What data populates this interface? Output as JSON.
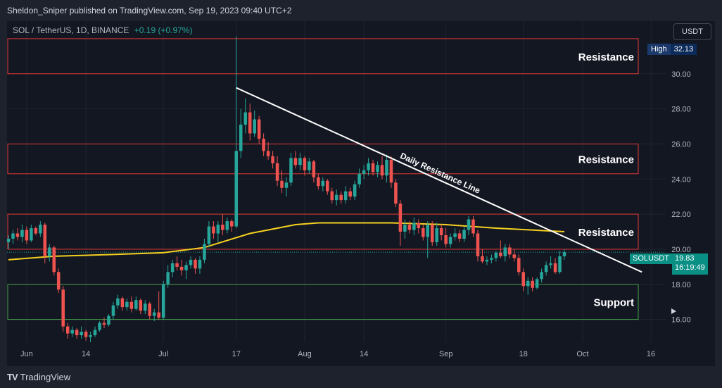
{
  "top_bar": {
    "publisher_text": "Sheldon_Sniper published on TradingView.com, Sep 19, 2023 09:40 UTC+2"
  },
  "symbol_header": {
    "symbol": "SOL / TetherUS, 1D, BINANCE",
    "change": "+0.19 (+0.97%)"
  },
  "currency_button": "USDT",
  "high_marker": {
    "label": "High",
    "value": "32.13"
  },
  "last_price_tag": {
    "symbol": "SOLUSDT",
    "price": "19.83",
    "countdown": "16:19:49"
  },
  "footer": {
    "brand": "TradingView",
    "brand_mark": "TV"
  },
  "colors": {
    "up": "#26a69a",
    "down": "#ef5350",
    "ma": "#f5d020",
    "resistance": "#e53935",
    "support": "#43a047",
    "trendline": "#ffffff",
    "background": "#131722"
  },
  "chart_data": {
    "type": "candlestick",
    "timeframe": "1D",
    "x_tick_labels": [
      "Jun",
      "14",
      "Jul",
      "17",
      "Aug",
      "14",
      "Sep",
      "18",
      "Oct",
      "16"
    ],
    "x_tick_dates": [
      "2023-06-01",
      "2023-06-14",
      "2023-07-01",
      "2023-07-17",
      "2023-08-01",
      "2023-08-14",
      "2023-09-01",
      "2023-09-18",
      "2023-10-01",
      "2023-10-16"
    ],
    "y_tick_labels": [
      "30.00",
      "28.00",
      "26.00",
      "24.00",
      "22.00",
      "20.00",
      "18.00",
      "16.00"
    ],
    "y_range": [
      14.7,
      33.0
    ],
    "candles": [
      {
        "date": "2023-05-28",
        "o": 20.4,
        "h": 20.8,
        "l": 20.0,
        "c": 20.6
      },
      {
        "date": "2023-05-29",
        "o": 20.6,
        "h": 21.1,
        "l": 20.3,
        "c": 20.9
      },
      {
        "date": "2023-05-30",
        "o": 20.9,
        "h": 21.2,
        "l": 20.5,
        "c": 20.7
      },
      {
        "date": "2023-05-31",
        "o": 20.7,
        "h": 21.4,
        "l": 20.4,
        "c": 21.1
      },
      {
        "date": "2023-06-01",
        "o": 21.1,
        "h": 21.3,
        "l": 20.3,
        "c": 20.5
      },
      {
        "date": "2023-06-02",
        "o": 20.5,
        "h": 21.4,
        "l": 20.4,
        "c": 21.2
      },
      {
        "date": "2023-06-03",
        "o": 21.2,
        "h": 21.3,
        "l": 20.8,
        "c": 20.9
      },
      {
        "date": "2023-06-04",
        "o": 20.9,
        "h": 21.6,
        "l": 20.7,
        "c": 21.4
      },
      {
        "date": "2023-06-05",
        "o": 21.4,
        "h": 21.5,
        "l": 19.2,
        "c": 19.6
      },
      {
        "date": "2023-06-06",
        "o": 19.6,
        "h": 20.3,
        "l": 19.3,
        "c": 20.1
      },
      {
        "date": "2023-06-07",
        "o": 20.1,
        "h": 20.2,
        "l": 18.5,
        "c": 18.7
      },
      {
        "date": "2023-06-08",
        "o": 18.7,
        "h": 18.9,
        "l": 17.5,
        "c": 17.7
      },
      {
        "date": "2023-06-09",
        "o": 17.7,
        "h": 17.9,
        "l": 15.3,
        "c": 15.6
      },
      {
        "date": "2023-06-10",
        "o": 15.6,
        "h": 15.8,
        "l": 14.9,
        "c": 15.2
      },
      {
        "date": "2023-06-11",
        "o": 15.2,
        "h": 15.6,
        "l": 15.0,
        "c": 15.4
      },
      {
        "date": "2023-06-12",
        "o": 15.4,
        "h": 15.5,
        "l": 14.9,
        "c": 15.1
      },
      {
        "date": "2023-06-13",
        "o": 15.1,
        "h": 15.6,
        "l": 14.9,
        "c": 15.3
      },
      {
        "date": "2023-06-14",
        "o": 15.3,
        "h": 15.4,
        "l": 14.8,
        "c": 15.0
      },
      {
        "date": "2023-06-15",
        "o": 15.0,
        "h": 15.3,
        "l": 14.7,
        "c": 15.1
      },
      {
        "date": "2023-06-16",
        "o": 15.1,
        "h": 15.6,
        "l": 15.0,
        "c": 15.4
      },
      {
        "date": "2023-06-17",
        "o": 15.4,
        "h": 15.9,
        "l": 15.3,
        "c": 15.8
      },
      {
        "date": "2023-06-18",
        "o": 15.8,
        "h": 16.1,
        "l": 15.5,
        "c": 15.7
      },
      {
        "date": "2023-06-19",
        "o": 15.7,
        "h": 16.3,
        "l": 15.6,
        "c": 16.2
      },
      {
        "date": "2023-06-20",
        "o": 16.2,
        "h": 17.0,
        "l": 16.0,
        "c": 16.8
      },
      {
        "date": "2023-06-21",
        "o": 16.8,
        "h": 17.4,
        "l": 16.6,
        "c": 17.2
      },
      {
        "date": "2023-06-22",
        "o": 17.2,
        "h": 17.3,
        "l": 16.5,
        "c": 16.7
      },
      {
        "date": "2023-06-23",
        "o": 16.7,
        "h": 17.2,
        "l": 16.5,
        "c": 17.0
      },
      {
        "date": "2023-06-24",
        "o": 17.0,
        "h": 17.3,
        "l": 16.4,
        "c": 16.6
      },
      {
        "date": "2023-06-25",
        "o": 16.6,
        "h": 17.3,
        "l": 16.5,
        "c": 17.1
      },
      {
        "date": "2023-06-26",
        "o": 17.1,
        "h": 17.2,
        "l": 16.3,
        "c": 16.5
      },
      {
        "date": "2023-06-27",
        "o": 16.5,
        "h": 17.1,
        "l": 16.3,
        "c": 16.9
      },
      {
        "date": "2023-06-28",
        "o": 16.9,
        "h": 17.0,
        "l": 16.0,
        "c": 16.2
      },
      {
        "date": "2023-06-29",
        "o": 16.2,
        "h": 16.6,
        "l": 15.9,
        "c": 16.4
      },
      {
        "date": "2023-06-30",
        "o": 16.4,
        "h": 17.6,
        "l": 16.0,
        "c": 16.1
      },
      {
        "date": "2023-07-01",
        "o": 16.1,
        "h": 18.2,
        "l": 16.0,
        "c": 18.0
      },
      {
        "date": "2023-07-02",
        "o": 18.0,
        "h": 19.1,
        "l": 17.8,
        "c": 18.7
      },
      {
        "date": "2023-07-03",
        "o": 18.7,
        "h": 19.4,
        "l": 18.4,
        "c": 19.2
      },
      {
        "date": "2023-07-04",
        "o": 19.2,
        "h": 19.6,
        "l": 18.8,
        "c": 19.0
      },
      {
        "date": "2023-07-05",
        "o": 19.0,
        "h": 19.4,
        "l": 18.5,
        "c": 18.8
      },
      {
        "date": "2023-07-06",
        "o": 18.8,
        "h": 19.3,
        "l": 18.3,
        "c": 19.1
      },
      {
        "date": "2023-07-07",
        "o": 19.1,
        "h": 19.6,
        "l": 18.9,
        "c": 19.4
      },
      {
        "date": "2023-07-08",
        "o": 19.4,
        "h": 19.5,
        "l": 18.6,
        "c": 18.9
      },
      {
        "date": "2023-07-09",
        "o": 18.9,
        "h": 19.6,
        "l": 18.6,
        "c": 19.4
      },
      {
        "date": "2023-07-10",
        "o": 19.4,
        "h": 20.6,
        "l": 19.2,
        "c": 20.3
      },
      {
        "date": "2023-07-11",
        "o": 20.3,
        "h": 21.6,
        "l": 20.1,
        "c": 21.3
      },
      {
        "date": "2023-07-12",
        "o": 21.3,
        "h": 21.6,
        "l": 20.6,
        "c": 20.9
      },
      {
        "date": "2023-07-13",
        "o": 20.9,
        "h": 21.6,
        "l": 20.4,
        "c": 21.4
      },
      {
        "date": "2023-07-14",
        "o": 21.4,
        "h": 22.0,
        "l": 20.8,
        "c": 21.1
      },
      {
        "date": "2023-07-15",
        "o": 21.1,
        "h": 21.8,
        "l": 20.9,
        "c": 21.6
      },
      {
        "date": "2023-07-16",
        "o": 21.6,
        "h": 21.7,
        "l": 21.0,
        "c": 21.3
      },
      {
        "date": "2023-07-17",
        "o": 21.3,
        "h": 32.13,
        "l": 21.2,
        "c": 25.6
      },
      {
        "date": "2023-07-18",
        "o": 25.6,
        "h": 28.0,
        "l": 25.2,
        "c": 27.1
      },
      {
        "date": "2023-07-19",
        "o": 27.1,
        "h": 28.6,
        "l": 26.6,
        "c": 27.8
      },
      {
        "date": "2023-07-20",
        "o": 27.8,
        "h": 28.3,
        "l": 26.2,
        "c": 26.6
      },
      {
        "date": "2023-07-21",
        "o": 26.6,
        "h": 27.9,
        "l": 26.4,
        "c": 27.4
      },
      {
        "date": "2023-07-22",
        "o": 27.4,
        "h": 27.6,
        "l": 26.0,
        "c": 26.3
      },
      {
        "date": "2023-07-23",
        "o": 26.3,
        "h": 26.6,
        "l": 25.3,
        "c": 25.6
      },
      {
        "date": "2023-07-24",
        "o": 25.6,
        "h": 26.1,
        "l": 25.1,
        "c": 25.3
      },
      {
        "date": "2023-07-25",
        "o": 25.3,
        "h": 25.6,
        "l": 24.6,
        "c": 24.9
      },
      {
        "date": "2023-07-26",
        "o": 24.9,
        "h": 25.3,
        "l": 23.6,
        "c": 23.9
      },
      {
        "date": "2023-07-27",
        "o": 23.9,
        "h": 24.5,
        "l": 23.2,
        "c": 23.5
      },
      {
        "date": "2023-07-28",
        "o": 23.5,
        "h": 24.1,
        "l": 23.0,
        "c": 23.8
      },
      {
        "date": "2023-07-29",
        "o": 23.8,
        "h": 25.5,
        "l": 23.6,
        "c": 25.2
      },
      {
        "date": "2023-07-30",
        "o": 25.2,
        "h": 25.6,
        "l": 24.6,
        "c": 24.8
      },
      {
        "date": "2023-07-31",
        "o": 24.8,
        "h": 25.5,
        "l": 24.5,
        "c": 25.2
      },
      {
        "date": "2023-08-01",
        "o": 25.2,
        "h": 25.3,
        "l": 24.2,
        "c": 24.5
      },
      {
        "date": "2023-08-02",
        "o": 24.5,
        "h": 25.2,
        "l": 24.3,
        "c": 25.0
      },
      {
        "date": "2023-08-03",
        "o": 25.0,
        "h": 25.1,
        "l": 23.8,
        "c": 24.1
      },
      {
        "date": "2023-08-04",
        "o": 24.1,
        "h": 24.3,
        "l": 23.4,
        "c": 23.6
      },
      {
        "date": "2023-08-05",
        "o": 23.6,
        "h": 24.1,
        "l": 23.3,
        "c": 23.9
      },
      {
        "date": "2023-08-06",
        "o": 23.9,
        "h": 24.0,
        "l": 23.1,
        "c": 23.3
      },
      {
        "date": "2023-08-07",
        "o": 23.3,
        "h": 23.5,
        "l": 22.6,
        "c": 22.8
      },
      {
        "date": "2023-08-08",
        "o": 22.8,
        "h": 23.4,
        "l": 22.5,
        "c": 23.1
      },
      {
        "date": "2023-08-09",
        "o": 23.1,
        "h": 23.3,
        "l": 22.6,
        "c": 22.8
      },
      {
        "date": "2023-08-10",
        "o": 22.8,
        "h": 23.6,
        "l": 22.6,
        "c": 23.3
      },
      {
        "date": "2023-08-11",
        "o": 23.3,
        "h": 23.5,
        "l": 22.8,
        "c": 23.0
      },
      {
        "date": "2023-08-12",
        "o": 23.0,
        "h": 23.9,
        "l": 22.8,
        "c": 23.7
      },
      {
        "date": "2023-08-13",
        "o": 23.7,
        "h": 24.6,
        "l": 23.5,
        "c": 24.3
      },
      {
        "date": "2023-08-14",
        "o": 24.3,
        "h": 24.8,
        "l": 24.0,
        "c": 24.5
      },
      {
        "date": "2023-08-15",
        "o": 24.5,
        "h": 25.2,
        "l": 24.2,
        "c": 24.9
      },
      {
        "date": "2023-08-16",
        "o": 24.9,
        "h": 25.1,
        "l": 24.2,
        "c": 24.4
      },
      {
        "date": "2023-08-17",
        "o": 24.4,
        "h": 25.0,
        "l": 24.1,
        "c": 24.8
      },
      {
        "date": "2023-08-18",
        "o": 24.8,
        "h": 25.3,
        "l": 24.0,
        "c": 24.2
      },
      {
        "date": "2023-08-19",
        "o": 24.2,
        "h": 25.4,
        "l": 23.8,
        "c": 25.1
      },
      {
        "date": "2023-08-20",
        "o": 25.1,
        "h": 25.3,
        "l": 23.5,
        "c": 23.8
      },
      {
        "date": "2023-08-21",
        "o": 23.8,
        "h": 24.0,
        "l": 22.4,
        "c": 22.6
      },
      {
        "date": "2023-08-22",
        "o": 22.6,
        "h": 22.8,
        "l": 20.2,
        "c": 21.0
      },
      {
        "date": "2023-08-23",
        "o": 21.0,
        "h": 21.7,
        "l": 20.6,
        "c": 21.4
      },
      {
        "date": "2023-08-24",
        "o": 21.4,
        "h": 21.6,
        "l": 20.9,
        "c": 21.1
      },
      {
        "date": "2023-08-25",
        "o": 21.1,
        "h": 21.8,
        "l": 20.8,
        "c": 21.5
      },
      {
        "date": "2023-08-26",
        "o": 21.5,
        "h": 21.7,
        "l": 20.9,
        "c": 21.2
      },
      {
        "date": "2023-08-27",
        "o": 21.2,
        "h": 21.4,
        "l": 20.5,
        "c": 20.7
      },
      {
        "date": "2023-08-28",
        "o": 20.7,
        "h": 21.6,
        "l": 19.5,
        "c": 21.4
      },
      {
        "date": "2023-08-29",
        "o": 21.4,
        "h": 21.6,
        "l": 20.2,
        "c": 20.4
      },
      {
        "date": "2023-08-30",
        "o": 20.4,
        "h": 21.5,
        "l": 20.2,
        "c": 21.2
      },
      {
        "date": "2023-08-31",
        "o": 21.2,
        "h": 21.4,
        "l": 20.5,
        "c": 20.8
      },
      {
        "date": "2023-09-01",
        "o": 20.8,
        "h": 21.2,
        "l": 20.1,
        "c": 20.3
      },
      {
        "date": "2023-09-02",
        "o": 20.3,
        "h": 20.9,
        "l": 20.1,
        "c": 20.7
      },
      {
        "date": "2023-09-03",
        "o": 20.7,
        "h": 21.2,
        "l": 20.5,
        "c": 20.9
      },
      {
        "date": "2023-09-04",
        "o": 20.9,
        "h": 21.1,
        "l": 20.4,
        "c": 20.6
      },
      {
        "date": "2023-09-05",
        "o": 20.6,
        "h": 21.3,
        "l": 20.4,
        "c": 21.1
      },
      {
        "date": "2023-09-06",
        "o": 21.1,
        "h": 21.9,
        "l": 20.8,
        "c": 21.7
      },
      {
        "date": "2023-09-07",
        "o": 21.7,
        "h": 21.9,
        "l": 20.7,
        "c": 20.9
      },
      {
        "date": "2023-09-08",
        "o": 20.9,
        "h": 21.1,
        "l": 19.3,
        "c": 19.6
      },
      {
        "date": "2023-09-09",
        "o": 19.6,
        "h": 20.0,
        "l": 19.2,
        "c": 19.3
      },
      {
        "date": "2023-09-10",
        "o": 19.3,
        "h": 19.6,
        "l": 19.1,
        "c": 19.4
      },
      {
        "date": "2023-09-11",
        "o": 19.4,
        "h": 19.7,
        "l": 19.2,
        "c": 19.5
      },
      {
        "date": "2023-09-12",
        "o": 19.5,
        "h": 19.9,
        "l": 19.3,
        "c": 19.8
      },
      {
        "date": "2023-09-13",
        "o": 19.8,
        "h": 20.5,
        "l": 19.5,
        "c": 19.6
      },
      {
        "date": "2023-09-14",
        "o": 19.6,
        "h": 20.3,
        "l": 19.3,
        "c": 20.1
      },
      {
        "date": "2023-09-15",
        "o": 20.1,
        "h": 20.3,
        "l": 19.5,
        "c": 19.7
      },
      {
        "date": "2023-09-16",
        "o": 19.7,
        "h": 20.0,
        "l": 19.3,
        "c": 19.5
      },
      {
        "date": "2023-09-17",
        "o": 19.5,
        "h": 19.7,
        "l": 18.5,
        "c": 18.7
      },
      {
        "date": "2023-09-18",
        "o": 18.7,
        "h": 18.9,
        "l": 17.6,
        "c": 17.9
      },
      {
        "date": "2023-09-19",
        "o": 17.9,
        "h": 18.4,
        "l": 17.4,
        "c": 18.2
      },
      {
        "date": "2023-09-20",
        "o": 18.2,
        "h": 18.4,
        "l": 17.6,
        "c": 17.8
      },
      {
        "date": "2023-09-21",
        "o": 17.8,
        "h": 18.4,
        "l": 17.7,
        "c": 18.3
      },
      {
        "date": "2023-09-22",
        "o": 18.3,
        "h": 18.9,
        "l": 18.1,
        "c": 18.7
      },
      {
        "date": "2023-09-23",
        "o": 18.7,
        "h": 19.3,
        "l": 18.5,
        "c": 19.1
      },
      {
        "date": "2023-09-24",
        "o": 19.1,
        "h": 19.6,
        "l": 18.9,
        "c": 19.2
      },
      {
        "date": "2023-09-25",
        "o": 19.2,
        "h": 19.5,
        "l": 18.6,
        "c": 18.7
      },
      {
        "date": "2023-09-26",
        "o": 18.7,
        "h": 19.9,
        "l": 18.6,
        "c": 19.6
      },
      {
        "date": "2023-09-27",
        "o": 19.6,
        "h": 20.0,
        "l": 19.4,
        "c": 19.83
      }
    ],
    "moving_average": {
      "points": [
        {
          "date": "2023-05-28",
          "v": 19.4
        },
        {
          "date": "2023-06-07",
          "v": 19.6
        },
        {
          "date": "2023-06-20",
          "v": 19.7
        },
        {
          "date": "2023-07-01",
          "v": 19.8
        },
        {
          "date": "2023-07-10",
          "v": 20.1
        },
        {
          "date": "2023-07-20",
          "v": 20.9
        },
        {
          "date": "2023-07-30",
          "v": 21.4
        },
        {
          "date": "2023-08-04",
          "v": 21.5
        },
        {
          "date": "2023-08-20",
          "v": 21.5
        },
        {
          "date": "2023-09-01",
          "v": 21.4
        },
        {
          "date": "2023-09-12",
          "v": 21.2
        },
        {
          "date": "2023-09-27",
          "v": 21.0
        }
      ]
    },
    "zones": [
      {
        "label": "Resistance",
        "kind": "resistance",
        "top": 32.0,
        "bottom": 30.0
      },
      {
        "label": "Resistance",
        "kind": "resistance",
        "top": 26.0,
        "bottom": 24.3
      },
      {
        "label": "Resistance",
        "kind": "resistance",
        "top": 22.0,
        "bottom": 20.0
      },
      {
        "label": "Support",
        "kind": "support",
        "top": 18.0,
        "bottom": 16.0
      }
    ],
    "trendline": {
      "label": "Daily Resistance Line",
      "start": {
        "date": "2023-07-17",
        "v": 29.2
      },
      "end": {
        "date": "2023-10-14",
        "v": 18.7
      }
    },
    "last_price_line": 19.83,
    "grid": true
  }
}
